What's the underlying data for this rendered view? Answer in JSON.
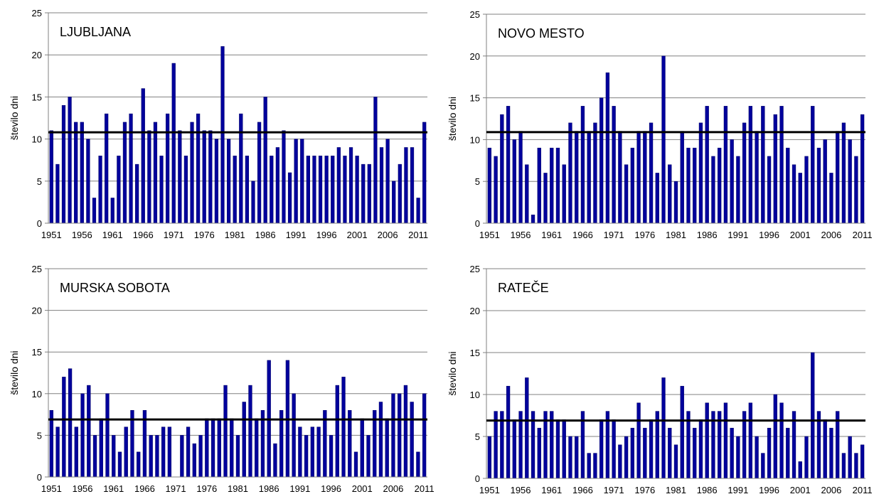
{
  "colors": {
    "bar": "#00009C",
    "bar_edge": "#000066",
    "mean_line": "#000000",
    "grid": "#808080",
    "axis": "#808080"
  },
  "chart_data": [
    {
      "type": "bar",
      "title": "LJUBLJANA",
      "ylabel": "število dni",
      "ylim": [
        0,
        25
      ],
      "yticks": [
        0,
        5,
        10,
        15,
        20,
        25
      ],
      "xticks": [
        "1951",
        "1956",
        "1961",
        "1966",
        "1971",
        "1976",
        "1981",
        "1986",
        "1991",
        "1996",
        "2001",
        "2006",
        "2011"
      ],
      "grid": true,
      "first_year": 1951,
      "values": [
        11,
        7,
        14,
        15,
        12,
        12,
        10,
        3,
        8,
        13,
        3,
        8,
        12,
        13,
        7,
        16,
        11,
        12,
        8,
        13,
        19,
        11,
        8,
        12,
        13,
        11,
        11,
        10,
        21,
        10,
        8,
        13,
        8,
        5,
        12,
        15,
        8,
        9,
        11,
        6,
        10,
        10,
        8,
        8,
        8,
        8,
        8,
        9,
        8,
        9,
        8,
        7,
        7,
        15,
        9,
        10,
        5,
        7,
        9,
        9,
        3,
        12
      ],
      "mean": 10.8
    },
    {
      "type": "bar",
      "title": "NOVO MESTO",
      "ylabel": "število dni",
      "ylim": [
        0,
        25
      ],
      "yticks": [
        0,
        5,
        10,
        15,
        20,
        25
      ],
      "xticks": [
        "1951",
        "1956",
        "1961",
        "1966",
        "1971",
        "1976",
        "1981",
        "1986",
        "1991",
        "1996",
        "2001",
        "2006",
        "2011"
      ],
      "grid": true,
      "first_year": 1951,
      "values": [
        9,
        8,
        13,
        14,
        10,
        11,
        7,
        1,
        9,
        6,
        9,
        9,
        7,
        12,
        11,
        14,
        11,
        12,
        15,
        18,
        14,
        11,
        7,
        9,
        11,
        11,
        12,
        6,
        20,
        7,
        5,
        11,
        9,
        9,
        12,
        14,
        8,
        9,
        14,
        10,
        8,
        12,
        14,
        11,
        14,
        8,
        13,
        14,
        9,
        7,
        6,
        8,
        14,
        9,
        10,
        6,
        11,
        12,
        10,
        8,
        13
      ],
      "mean": 10.9
    },
    {
      "type": "bar",
      "title": "MURSKA SOBOTA",
      "ylabel": "število dni",
      "ylim": [
        0,
        25
      ],
      "yticks": [
        0,
        5,
        10,
        15,
        20,
        25
      ],
      "xticks": [
        "1951",
        "1956",
        "1961",
        "1966",
        "1971",
        "1976",
        "1981",
        "1986",
        "1991",
        "1996",
        "2001",
        "2006",
        "2011"
      ],
      "grid": true,
      "first_year": 1951,
      "values": [
        8,
        6,
        12,
        13,
        6,
        10,
        11,
        5,
        7,
        10,
        5,
        3,
        6,
        8,
        3,
        8,
        5,
        5,
        6,
        6,
        0,
        5,
        6,
        4,
        5,
        7,
        7,
        7,
        11,
        7,
        5,
        9,
        11,
        7,
        8,
        14,
        4,
        8,
        14,
        10,
        6,
        5,
        6,
        6,
        8,
        5,
        11,
        12,
        8,
        3,
        7,
        5,
        8,
        9,
        7,
        10,
        10,
        11,
        9,
        3,
        10
      ],
      "mean": 6.9
    },
    {
      "type": "bar",
      "title": "RATEČE",
      "ylabel": "število dni",
      "ylim": [
        0,
        25
      ],
      "yticks": [
        0,
        5,
        10,
        15,
        20,
        25
      ],
      "xticks": [
        "1951",
        "1956",
        "1961",
        "1966",
        "1971",
        "1976",
        "1981",
        "1986",
        "1991",
        "1996",
        "2001",
        "2006",
        "2011"
      ],
      "grid": true,
      "first_year": 1951,
      "values": [
        5,
        8,
        8,
        11,
        7,
        8,
        12,
        8,
        6,
        8,
        8,
        7,
        7,
        5,
        5,
        8,
        3,
        3,
        7,
        8,
        7,
        4,
        5,
        6,
        9,
        6,
        7,
        8,
        12,
        6,
        4,
        11,
        8,
        6,
        7,
        9,
        8,
        8,
        9,
        6,
        5,
        8,
        9,
        5,
        3,
        6,
        10,
        9,
        6,
        8,
        2,
        5,
        15,
        8,
        7,
        6,
        8,
        3,
        5,
        3,
        4
      ],
      "mean": 6.9
    }
  ]
}
